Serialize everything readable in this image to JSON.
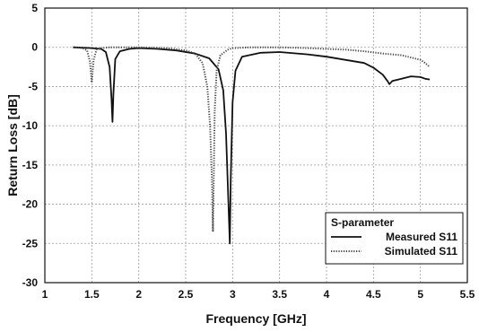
{
  "chart_data": {
    "type": "line",
    "title": "",
    "xlabel": "Frequency [GHz]",
    "ylabel": "Return Loss [dB]",
    "xlim": [
      1,
      5.5
    ],
    "ylim": [
      -30,
      5
    ],
    "x_ticks": [
      "1",
      "1.5",
      "2",
      "2.5",
      "3",
      "3.5",
      "4",
      "4.5",
      "5",
      "5.5"
    ],
    "y_ticks": [
      "5",
      "0",
      "-5",
      "-10",
      "-15",
      "-20",
      "-25",
      "-30"
    ],
    "grid": "dashed",
    "legend": {
      "position": "bottom-right",
      "title": "S-parameter",
      "entries": [
        "Measured S11",
        "Simulated S11"
      ]
    },
    "series": [
      {
        "name": "Measured S11",
        "style": "solid",
        "color": "#111111",
        "x": [
          1.3,
          1.5,
          1.6,
          1.65,
          1.69,
          1.71,
          1.72,
          1.73,
          1.75,
          1.8,
          1.9,
          2.0,
          2.2,
          2.4,
          2.6,
          2.75,
          2.85,
          2.9,
          2.93,
          2.95,
          2.97,
          2.98,
          3.0,
          3.03,
          3.1,
          3.3,
          3.5,
          3.8,
          4.0,
          4.2,
          4.4,
          4.5,
          4.6,
          4.65,
          4.67,
          4.7,
          4.8,
          4.9,
          5.0,
          5.05,
          5.1
        ],
        "y": [
          0.0,
          -0.1,
          -0.2,
          -0.6,
          -2.5,
          -6.5,
          -9.5,
          -6.0,
          -1.5,
          -0.5,
          -0.2,
          -0.1,
          -0.2,
          -0.4,
          -0.8,
          -1.4,
          -2.8,
          -5.5,
          -11.0,
          -18.0,
          -25.0,
          -17.0,
          -7.0,
          -3.0,
          -1.2,
          -0.7,
          -0.6,
          -0.9,
          -1.2,
          -1.6,
          -2.0,
          -2.6,
          -3.5,
          -4.3,
          -4.7,
          -4.3,
          -4.0,
          -3.7,
          -3.8,
          -4.0,
          -4.1
        ]
      },
      {
        "name": "Simulated S11",
        "style": "dotted",
        "color": "#444444",
        "x": [
          1.3,
          1.4,
          1.45,
          1.48,
          1.5,
          1.52,
          1.55,
          1.6,
          1.7,
          2.0,
          2.3,
          2.5,
          2.6,
          2.68,
          2.73,
          2.76,
          2.78,
          2.79,
          2.8,
          2.81,
          2.83,
          2.87,
          2.95,
          3.0,
          3.2,
          3.5,
          3.8,
          4.0,
          4.2,
          4.4,
          4.6,
          4.8,
          4.9,
          5.0,
          5.05,
          5.1
        ],
        "y": [
          0.0,
          -0.1,
          -0.4,
          -1.8,
          -4.5,
          -1.6,
          -0.3,
          -0.1,
          0.0,
          0.0,
          -0.1,
          -0.4,
          -0.8,
          -2.0,
          -5.0,
          -10.0,
          -17.0,
          -23.5,
          -16.0,
          -8.0,
          -3.0,
          -1.0,
          -0.3,
          -0.1,
          0.0,
          0.0,
          -0.1,
          -0.2,
          -0.3,
          -0.5,
          -0.8,
          -1.0,
          -1.3,
          -1.6,
          -2.0,
          -2.5
        ]
      }
    ]
  }
}
